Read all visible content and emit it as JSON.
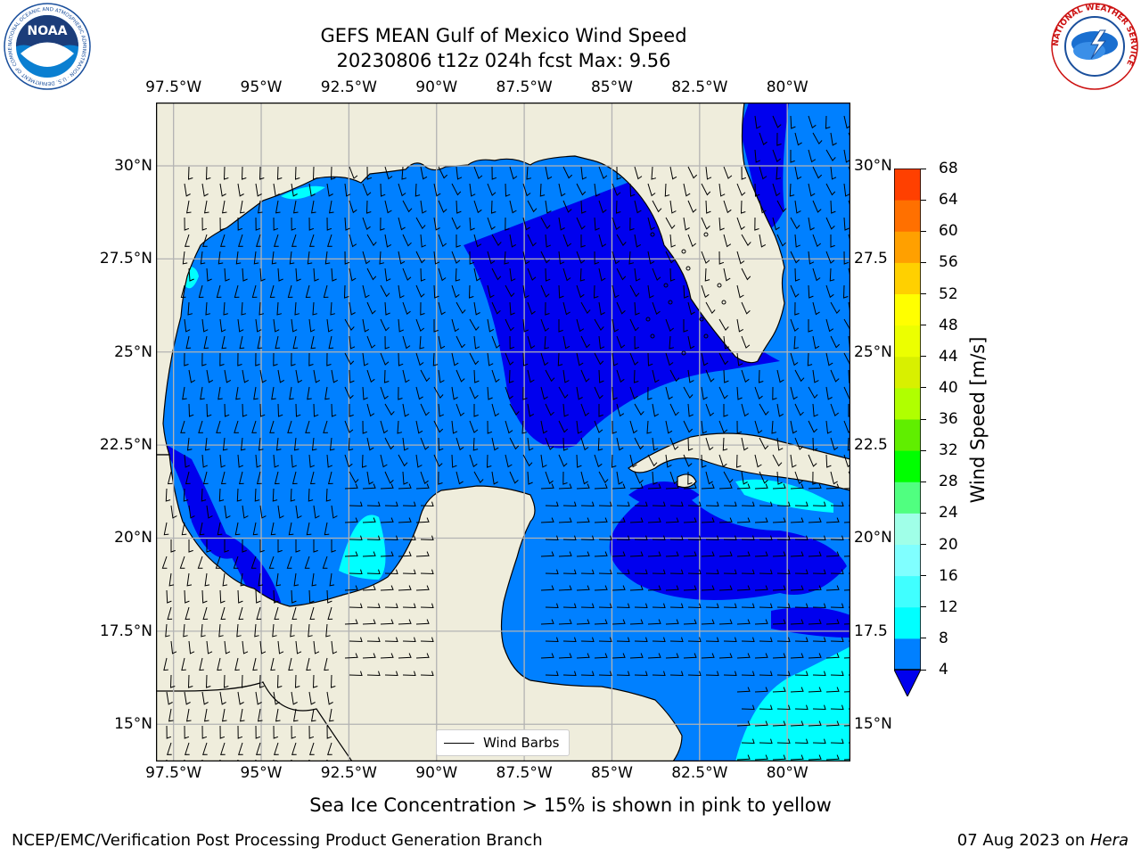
{
  "header": {
    "title_line1": "GEFS MEAN Gulf of Mexico Wind Speed",
    "title_line2": "20230806 t12z 024h fcst   Max: 9.56"
  },
  "logos": {
    "left": "noara-logo",
    "left_text": "NOAA",
    "left_ring_text": "NATIONAL OCEANIC AND ATMOSPHERIC ADMINISTRATION · U.S. DEPARTMENT OF COMMERCE",
    "right": "nws-logo",
    "right_ring_text": "NATIONAL WEATHER SERVICE"
  },
  "map": {
    "lon_labels": [
      "97.5°W",
      "95°W",
      "92.5°W",
      "90°W",
      "87.5°W",
      "85°W",
      "82.5°W",
      "80°W"
    ],
    "lat_labels_left": [
      "30°N",
      "27.5°N",
      "25°N",
      "22.5°N",
      "20°N",
      "17.5°N",
      "15°N"
    ],
    "lat_labels_right": [
      "30°N",
      "27.5",
      "25°N",
      "22.5",
      "20°N",
      "17.5",
      "15°N"
    ],
    "lon_range": [
      -98,
      -78.2
    ],
    "lat_range": [
      14.0,
      31.7
    ],
    "colors": {
      "land": "#efeddc",
      "ocean_4_8": "#0080ff",
      "ocean_lt4": "#0000ee",
      "ocean_8_12": "#00ffff",
      "grid": "#b3b3b3"
    },
    "legend_label": "Wind Barbs"
  },
  "colorbar": {
    "label": "Wind Speed [m/s]",
    "levels": [
      4,
      8,
      12,
      16,
      20,
      24,
      28,
      32,
      36,
      40,
      44,
      48,
      52,
      56,
      60,
      64,
      68
    ],
    "colors": [
      "#0080ff",
      "#00ffff",
      "#40ffff",
      "#80ffff",
      "#a0ffe8",
      "#50ff80",
      "#00ff00",
      "#60ee00",
      "#b0ff00",
      "#d8f000",
      "#ecff00",
      "#ffff00",
      "#ffd000",
      "#ffa000",
      "#ff7000",
      "#ff4000",
      "#ff0000"
    ],
    "under_color": "#0000ee"
  },
  "notes": {
    "sea_ice": "Sea Ice Concentration > 15% is shown in pink to yellow",
    "org": "NCEP/EMC/Verification Post Processing Product Generation Branch",
    "date_prefix": "07 Aug 2023 on ",
    "date_host": "Hera"
  }
}
